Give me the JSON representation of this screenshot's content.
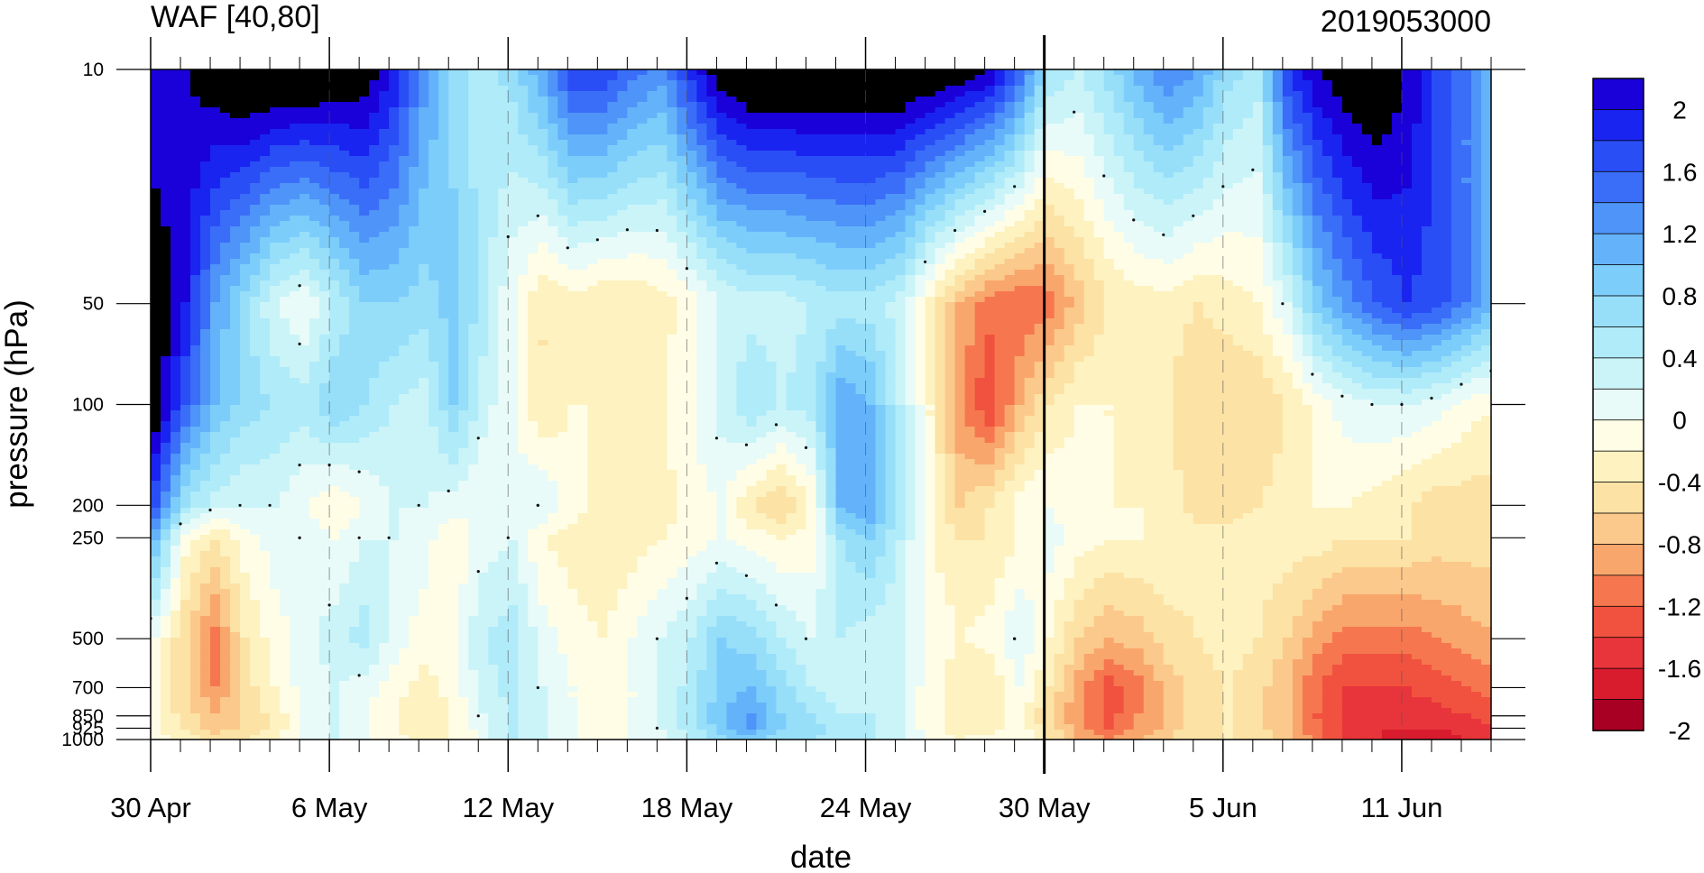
{
  "chart_data": {
    "type": "heatmap",
    "title_left": "WAF [40,80]",
    "title_right": "2019053000",
    "xlabel": "date",
    "ylabel": "pressure (hPa)",
    "x_start_date": "30 Apr",
    "x_dates": [
      "30 Apr",
      "1 May",
      "2 May",
      "3 May",
      "4 May",
      "5 May",
      "6 May",
      "7 May",
      "8 May",
      "9 May",
      "10 May",
      "11 May",
      "12 May",
      "13 May",
      "14 May",
      "15 May",
      "16 May",
      "17 May",
      "18 May",
      "19 May",
      "20 May",
      "21 May",
      "22 May",
      "23 May",
      "24 May",
      "25 May",
      "26 May",
      "27 May",
      "28 May",
      "29 May",
      "30 May",
      "31 May",
      "1 Jun",
      "2 Jun",
      "3 Jun",
      "4 Jun",
      "5 Jun",
      "6 Jun",
      "7 Jun",
      "8 Jun",
      "9 Jun",
      "10 Jun",
      "11 Jun",
      "12 Jun",
      "13 Jun",
      "14 Jun"
    ],
    "x_tick_labels": [
      {
        "label": "30 Apr",
        "date": "30 Apr"
      },
      {
        "label": "6 May",
        "date": "6 May"
      },
      {
        "label": "12 May",
        "date": "12 May"
      },
      {
        "label": "18 May",
        "date": "18 May"
      },
      {
        "label": "24 May",
        "date": "24 May"
      },
      {
        "label": "30 May",
        "date": "30 May"
      },
      {
        "label": "5 Jun",
        "date": "5 Jun"
      },
      {
        "label": "11 Jun",
        "date": "11 Jun"
      }
    ],
    "current_date_marker": "30 May",
    "y_levels_hPa": [
      1000,
      925,
      850,
      700,
      500,
      250,
      200,
      100,
      50,
      10
    ],
    "y_tick_labels": [
      "10",
      "50",
      "100",
      "200",
      "250",
      "500",
      "700",
      "850",
      "925",
      "1000"
    ],
    "y_scale": "log",
    "y_reversed": true,
    "ylim": [
      1000,
      10
    ],
    "colorbar": {
      "levels": [
        -2.2,
        -2,
        -1.8,
        -1.6,
        -1.4,
        -1.2,
        -1,
        -0.8,
        -0.6,
        -0.4,
        -0.2,
        0,
        0.2,
        0.4,
        0.6,
        0.8,
        1,
        1.2,
        1.4,
        1.6,
        1.8,
        2,
        2.2
      ],
      "labels": [
        "2",
        "1.6",
        "1.2",
        "0.8",
        "0.4",
        "0",
        "-0.4",
        "-0.8",
        "-1.2",
        "-1.6",
        "-2"
      ],
      "colors": [
        "#1a00d9",
        "#1a24f0",
        "#2a4ef6",
        "#3a6ef8",
        "#4f94f8",
        "#64b3fa",
        "#7dcdfb",
        "#97def9",
        "#b0ebf9",
        "#cbf4f8",
        "#e8fbf9",
        "#fffde6",
        "#fdf2c0",
        "#fce2a4",
        "#fbc98b",
        "#f9a66c",
        "#f6774f",
        "#f1523f",
        "#e8353b",
        "#d81c2e",
        "#a80022"
      ]
    },
    "values_by_level": {
      "1000": [
        -0.3,
        -0.5,
        -0.7,
        -0.6,
        -0.4,
        -0.2,
        0.0,
        -0.2,
        -0.3,
        -0.5,
        -0.4,
        -0.1,
        0.2,
        0.0,
        -0.2,
        -0.3,
        -0.2,
        -0.1,
        0.2,
        0.5,
        0.7,
        0.5,
        0.4,
        0.3,
        0.2,
        0.0,
        -0.2,
        -0.4,
        -0.3,
        -0.2,
        -0.6,
        -1.0,
        -1.2,
        -1.0,
        -0.8,
        -0.6,
        -0.6,
        -0.7,
        -0.9,
        -1.3,
        -1.6,
        -1.8,
        -1.9,
        -1.9,
        -1.8,
        -1.7
      ],
      "925": [
        -0.4,
        -0.6,
        -0.9,
        -0.8,
        -0.5,
        -0.2,
        0.0,
        -0.2,
        -0.4,
        -0.6,
        -0.4,
        -0.1,
        0.2,
        0.1,
        -0.2,
        -0.3,
        -0.2,
        0.0,
        0.3,
        0.7,
        1.0,
        0.6,
        0.5,
        0.3,
        0.2,
        0.0,
        -0.3,
        -0.6,
        -0.5,
        -0.3,
        -0.7,
        -1.1,
        -1.4,
        -1.2,
        -0.9,
        -0.7,
        -0.6,
        -0.7,
        -1.0,
        -1.4,
        -1.7,
        -1.8,
        -1.8,
        -1.8,
        -1.7,
        -1.6
      ],
      "850": [
        -0.4,
        -0.7,
        -1.0,
        -0.8,
        -0.5,
        -0.2,
        0.0,
        -0.2,
        -0.4,
        -0.6,
        -0.4,
        0.0,
        0.2,
        0.0,
        -0.2,
        -0.3,
        -0.2,
        0.0,
        0.3,
        0.8,
        1.0,
        0.6,
        0.4,
        0.2,
        0.2,
        0.0,
        -0.3,
        -0.6,
        -0.6,
        -0.3,
        -0.8,
        -1.2,
        -1.5,
        -1.2,
        -0.9,
        -0.7,
        -0.6,
        -0.7,
        -1.0,
        -1.4,
        -1.7,
        -1.7,
        -1.7,
        -1.7,
        -1.6,
        -1.5
      ],
      "700": [
        -0.3,
        -0.8,
        -1.2,
        -0.7,
        -0.4,
        -0.1,
        0.0,
        -0.1,
        -0.3,
        -0.5,
        -0.3,
        0.1,
        0.3,
        0.0,
        -0.2,
        -0.3,
        -0.2,
        0.0,
        0.3,
        0.7,
        0.8,
        0.5,
        0.2,
        0.1,
        0.1,
        0.0,
        -0.3,
        -0.6,
        -0.6,
        -0.2,
        -0.6,
        -1.1,
        -1.5,
        -1.3,
        -0.9,
        -0.7,
        -0.6,
        -0.7,
        -1.0,
        -1.4,
        -1.6,
        -1.6,
        -1.6,
        -1.5,
        -1.4,
        -1.3
      ],
      "500": [
        -0.2,
        -0.8,
        -1.3,
        -0.6,
        -0.3,
        -0.1,
        0.1,
        0.3,
        -0.1,
        -0.3,
        -0.2,
        0.2,
        0.3,
        -0.1,
        -0.3,
        -0.4,
        -0.2,
        0.0,
        0.2,
        0.6,
        0.5,
        0.2,
        0.0,
        0.2,
        0.1,
        0.0,
        -0.2,
        -0.4,
        -0.3,
        0.0,
        -0.4,
        -0.8,
        -1.0,
        -0.9,
        -0.7,
        -0.6,
        -0.5,
        -0.6,
        -0.8,
        -1.1,
        -1.3,
        -1.3,
        -1.3,
        -1.2,
        -1.1,
        -1.0
      ],
      "250": [
        0.8,
        -0.3,
        -0.6,
        -0.3,
        -0.1,
        0.0,
        -0.2,
        0.0,
        0.0,
        -0.1,
        -0.4,
        -0.1,
        0.0,
        -0.4,
        -0.5,
        -0.6,
        -0.5,
        -0.4,
        -0.3,
        -0.2,
        -0.3,
        -0.4,
        -0.3,
        0.4,
        0.6,
        0.2,
        -0.4,
        -0.6,
        -0.6,
        -0.4,
        -0.1,
        -0.3,
        -0.4,
        -0.4,
        -0.4,
        -0.5,
        -0.5,
        -0.5,
        -0.5,
        -0.5,
        -0.6,
        -0.6,
        -0.6,
        -0.7,
        -0.7,
        -0.7
      ],
      "200": [
        1.4,
        0.4,
        0.1,
        0.0,
        0.0,
        -0.2,
        -0.4,
        -0.2,
        0.0,
        0.0,
        -0.1,
        -0.2,
        -0.1,
        0.0,
        -0.3,
        -0.5,
        -0.6,
        -0.5,
        -0.3,
        -0.2,
        -0.6,
        -0.8,
        -0.4,
        0.8,
        1.0,
        0.3,
        -0.4,
        -0.8,
        -0.6,
        -0.3,
        -0.2,
        -0.3,
        -0.4,
        -0.4,
        -0.5,
        -0.7,
        -0.7,
        -0.6,
        -0.5,
        -0.4,
        -0.4,
        -0.5,
        -0.6,
        -0.7,
        -0.7,
        -0.7
      ],
      "100": [
        2.2,
        1.4,
        0.8,
        0.5,
        0.4,
        0.3,
        0.6,
        0.4,
        0.2,
        0.1,
        0.6,
        0.1,
        -0.2,
        -0.6,
        -0.4,
        -0.4,
        -0.5,
        -0.4,
        -0.2,
        0.1,
        0.4,
        0.2,
        0.3,
        1.0,
        0.8,
        0.2,
        -0.4,
        -1.2,
        -1.6,
        -1.0,
        -0.6,
        -0.4,
        -0.4,
        -0.5,
        -0.6,
        -0.8,
        -0.8,
        -0.8,
        -0.6,
        -0.3,
        -0.1,
        0.0,
        0.0,
        -0.1,
        -0.3,
        -0.4
      ],
      "50": [
        2.2,
        1.8,
        1.0,
        0.5,
        0.0,
        -0.2,
        0.2,
        0.6,
        0.6,
        0.5,
        0.7,
        0.3,
        -0.2,
        -0.6,
        -0.5,
        -0.6,
        -0.6,
        -0.5,
        -0.3,
        0.0,
        0.1,
        0.1,
        0.2,
        0.3,
        0.3,
        0.1,
        -0.5,
        -1.0,
        -1.3,
        -1.4,
        -1.3,
        -0.9,
        -0.6,
        -0.5,
        -0.5,
        -0.6,
        -0.5,
        -0.4,
        0.0,
        0.7,
        1.1,
        1.4,
        1.6,
        1.5,
        1.2,
        0.8
      ],
      "10": [
        1.8,
        2.0,
        2.2,
        2.4,
        2.4,
        2.4,
        2.3,
        2.2,
        1.8,
        1.1,
        0.5,
        0.3,
        0.5,
        1.0,
        1.6,
        1.6,
        1.3,
        1.1,
        1.7,
        2.2,
        2.4,
        2.4,
        2.4,
        2.4,
        2.4,
        2.4,
        2.3,
        2.2,
        2.0,
        1.4,
        0.4,
        0.2,
        0.5,
        0.9,
        1.2,
        1.0,
        0.5,
        0.3,
        1.6,
        2.0,
        2.2,
        2.3,
        2.0,
        1.6,
        1.2,
        0.8
      ]
    }
  }
}
